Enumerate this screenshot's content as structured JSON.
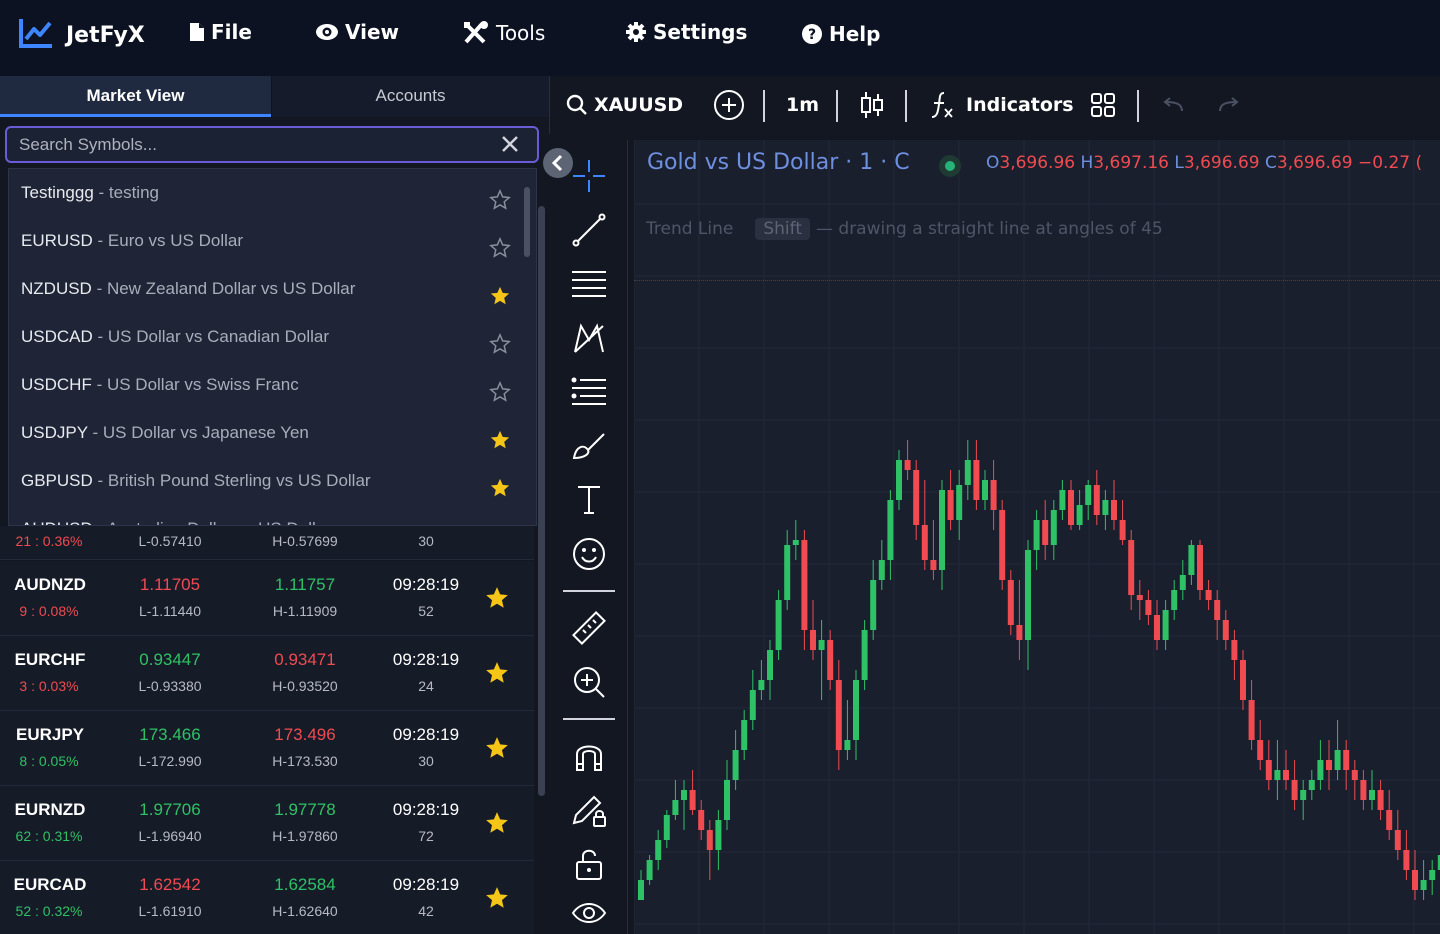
{
  "app": {
    "name": "JetFyX",
    "menu": [
      {
        "label": "File",
        "icon": "file-icon"
      },
      {
        "label": "View",
        "icon": "eye-icon"
      },
      {
        "label": "Tools",
        "icon": "tools-icon"
      },
      {
        "label": "Settings",
        "icon": "gear-icon"
      },
      {
        "label": "Help",
        "icon": "help-icon"
      }
    ]
  },
  "left_panel": {
    "tabs": [
      "Market View",
      "Accounts"
    ],
    "search": {
      "placeholder": "Search Symbols...",
      "value": ""
    },
    "suggestions": [
      {
        "symbol": "Testinggg",
        "desc": " - testing",
        "starred": false
      },
      {
        "symbol": "EURUSD",
        "desc": " - Euro vs US Dollar",
        "starred": false
      },
      {
        "symbol": "NZDUSD",
        "desc": " - New Zealand Dollar vs US Dollar",
        "starred": true
      },
      {
        "symbol": "USDCAD",
        "desc": " - US Dollar vs Canadian Dollar",
        "starred": false
      },
      {
        "symbol": "USDCHF",
        "desc": " - US Dollar vs Swiss Franc",
        "starred": false
      },
      {
        "symbol": "USDJPY",
        "desc": " - US Dollar vs Japanese Yen",
        "starred": true
      },
      {
        "symbol": "GBPUSD",
        "desc": " - British Pound Sterling vs US Dollar",
        "starred": true
      },
      {
        "symbol": "AUDUSD",
        "desc": " - Australian Dollar vs US Dollar",
        "starred": true
      }
    ],
    "partial_row": {
      "change": "21 : 0.36%",
      "low": "L-0.57410",
      "high": "H-0.57699",
      "sec": "30"
    },
    "quotes": [
      {
        "symbol": "AUDNZD",
        "change": "9 : 0.08%",
        "dir": "dn",
        "bid": "1.11705",
        "bid_dir": "dn",
        "ask": "1.11757",
        "ask_dir": "up",
        "low": "L-1.11440",
        "high": "H-1.11909",
        "time": "09:28:19",
        "sec": "52"
      },
      {
        "symbol": "EURCHF",
        "change": "3 : 0.03%",
        "dir": "dn",
        "bid": "0.93447",
        "bid_dir": "up",
        "ask": "0.93471",
        "ask_dir": "dn",
        "low": "L-0.93380",
        "high": "H-0.93520",
        "time": "09:28:19",
        "sec": "24"
      },
      {
        "symbol": "EURJPY",
        "change": "8 : 0.05%",
        "dir": "up",
        "bid": "173.466",
        "bid_dir": "up",
        "ask": "173.496",
        "ask_dir": "dn",
        "low": "L-172.990",
        "high": "H-173.530",
        "time": "09:28:19",
        "sec": "30"
      },
      {
        "symbol": "EURNZD",
        "change": "62 : 0.31%",
        "dir": "up",
        "bid": "1.97706",
        "bid_dir": "up",
        "ask": "1.97778",
        "ask_dir": "up",
        "low": "L-1.96940",
        "high": "H-1.97860",
        "time": "09:28:19",
        "sec": "72"
      },
      {
        "symbol": "EURCAD",
        "change": "52 : 0.32%",
        "dir": "up",
        "bid": "1.62542",
        "bid_dir": "dn",
        "ask": "1.62584",
        "ask_dir": "up",
        "low": "L-1.61910",
        "high": "H-1.62640",
        "time": "09:28:19",
        "sec": "42"
      }
    ]
  },
  "toolbar": {
    "symbol": "XAUUSD",
    "interval": "1m",
    "indicators": "Indicators"
  },
  "chart": {
    "title": "Gold vs US Dollar · 1 · C",
    "ohlc": {
      "o": "3,696.96",
      "h": "3,697.16",
      "l": "3,696.69",
      "c": "3,696.69",
      "chg": "−0.27 ("
    },
    "hint": {
      "tool": "Trend Line",
      "key": "Shift",
      "text": "— drawing a straight line at angles of 45"
    },
    "colors": {
      "up": "#2fc165",
      "down": "#ef4b50",
      "legend": "#6f8fe0"
    },
    "candles": [
      [
        900,
        880,
        900,
        870
      ],
      [
        880,
        860,
        885,
        855
      ],
      [
        860,
        840,
        870,
        830
      ],
      [
        840,
        815,
        848,
        810
      ],
      [
        815,
        800,
        820,
        780
      ],
      [
        800,
        790,
        830,
        780
      ],
      [
        790,
        810,
        815,
        770
      ],
      [
        810,
        830,
        840,
        800
      ],
      [
        830,
        850,
        880,
        820
      ],
      [
        850,
        820,
        870,
        810
      ],
      [
        820,
        780,
        830,
        760
      ],
      [
        780,
        750,
        790,
        730
      ],
      [
        750,
        720,
        760,
        710
      ],
      [
        720,
        690,
        730,
        670
      ],
      [
        690,
        680,
        700,
        660
      ],
      [
        680,
        650,
        700,
        640
      ],
      [
        650,
        600,
        660,
        590
      ],
      [
        600,
        545,
        610,
        530
      ],
      [
        545,
        540,
        560,
        520
      ],
      [
        540,
        630,
        650,
        530
      ],
      [
        630,
        650,
        660,
        600
      ],
      [
        650,
        640,
        700,
        620
      ],
      [
        640,
        680,
        690,
        630
      ],
      [
        680,
        750,
        770,
        660
      ],
      [
        750,
        740,
        760,
        700
      ],
      [
        740,
        680,
        760,
        670
      ],
      [
        680,
        630,
        690,
        620
      ],
      [
        630,
        580,
        640,
        560
      ],
      [
        580,
        560,
        590,
        540
      ],
      [
        560,
        500,
        580,
        490
      ],
      [
        500,
        460,
        510,
        450
      ],
      [
        460,
        470,
        480,
        440
      ],
      [
        470,
        525,
        540,
        460
      ],
      [
        525,
        560,
        570,
        480
      ],
      [
        560,
        570,
        580,
        520
      ],
      [
        570,
        490,
        590,
        480
      ],
      [
        490,
        520,
        530,
        470
      ],
      [
        520,
        485,
        540,
        470
      ],
      [
        485,
        460,
        500,
        440
      ],
      [
        460,
        500,
        510,
        440
      ],
      [
        500,
        480,
        510,
        470
      ],
      [
        480,
        510,
        530,
        460
      ],
      [
        510,
        580,
        590,
        500
      ],
      [
        580,
        625,
        635,
        570
      ],
      [
        625,
        640,
        660,
        580
      ],
      [
        640,
        550,
        670,
        540
      ],
      [
        550,
        520,
        570,
        510
      ],
      [
        520,
        545,
        560,
        500
      ],
      [
        545,
        510,
        560,
        500
      ],
      [
        510,
        490,
        520,
        480
      ],
      [
        490,
        525,
        530,
        480
      ],
      [
        525,
        505,
        530,
        490
      ],
      [
        505,
        485,
        520,
        480
      ],
      [
        485,
        515,
        525,
        470
      ],
      [
        515,
        500,
        530,
        490
      ],
      [
        500,
        520,
        530,
        480
      ],
      [
        520,
        540,
        545,
        500
      ],
      [
        540,
        595,
        610,
        530
      ],
      [
        595,
        600,
        620,
        580
      ],
      [
        600,
        615,
        625,
        590
      ],
      [
        615,
        640,
        650,
        600
      ],
      [
        640,
        610,
        650,
        600
      ],
      [
        610,
        590,
        620,
        580
      ],
      [
        590,
        575,
        600,
        560
      ],
      [
        575,
        545,
        585,
        540
      ],
      [
        545,
        590,
        600,
        540
      ],
      [
        590,
        600,
        610,
        580
      ],
      [
        600,
        620,
        640,
        590
      ],
      [
        620,
        640,
        650,
        610
      ],
      [
        640,
        660,
        680,
        630
      ],
      [
        660,
        700,
        710,
        650
      ],
      [
        700,
        740,
        750,
        680
      ],
      [
        740,
        760,
        770,
        720
      ],
      [
        760,
        780,
        790,
        740
      ],
      [
        780,
        770,
        800,
        740
      ],
      [
        770,
        780,
        790,
        750
      ],
      [
        780,
        800,
        810,
        760
      ],
      [
        800,
        790,
        820,
        780
      ],
      [
        790,
        780,
        800,
        770
      ],
      [
        780,
        760,
        790,
        740
      ],
      [
        760,
        770,
        790,
        740
      ],
      [
        770,
        750,
        780,
        720
      ],
      [
        750,
        770,
        790,
        740
      ],
      [
        770,
        780,
        800,
        760
      ],
      [
        780,
        800,
        810,
        770
      ],
      [
        800,
        790,
        810,
        770
      ],
      [
        790,
        810,
        820,
        780
      ],
      [
        810,
        830,
        840,
        790
      ],
      [
        830,
        850,
        860,
        810
      ],
      [
        850,
        870,
        880,
        830
      ],
      [
        870,
        890,
        900,
        850
      ],
      [
        890,
        880,
        900,
        860
      ],
      [
        880,
        870,
        895,
        860
      ],
      [
        870,
        855,
        880,
        840
      ],
      [
        855,
        840,
        870,
        830
      ]
    ]
  }
}
